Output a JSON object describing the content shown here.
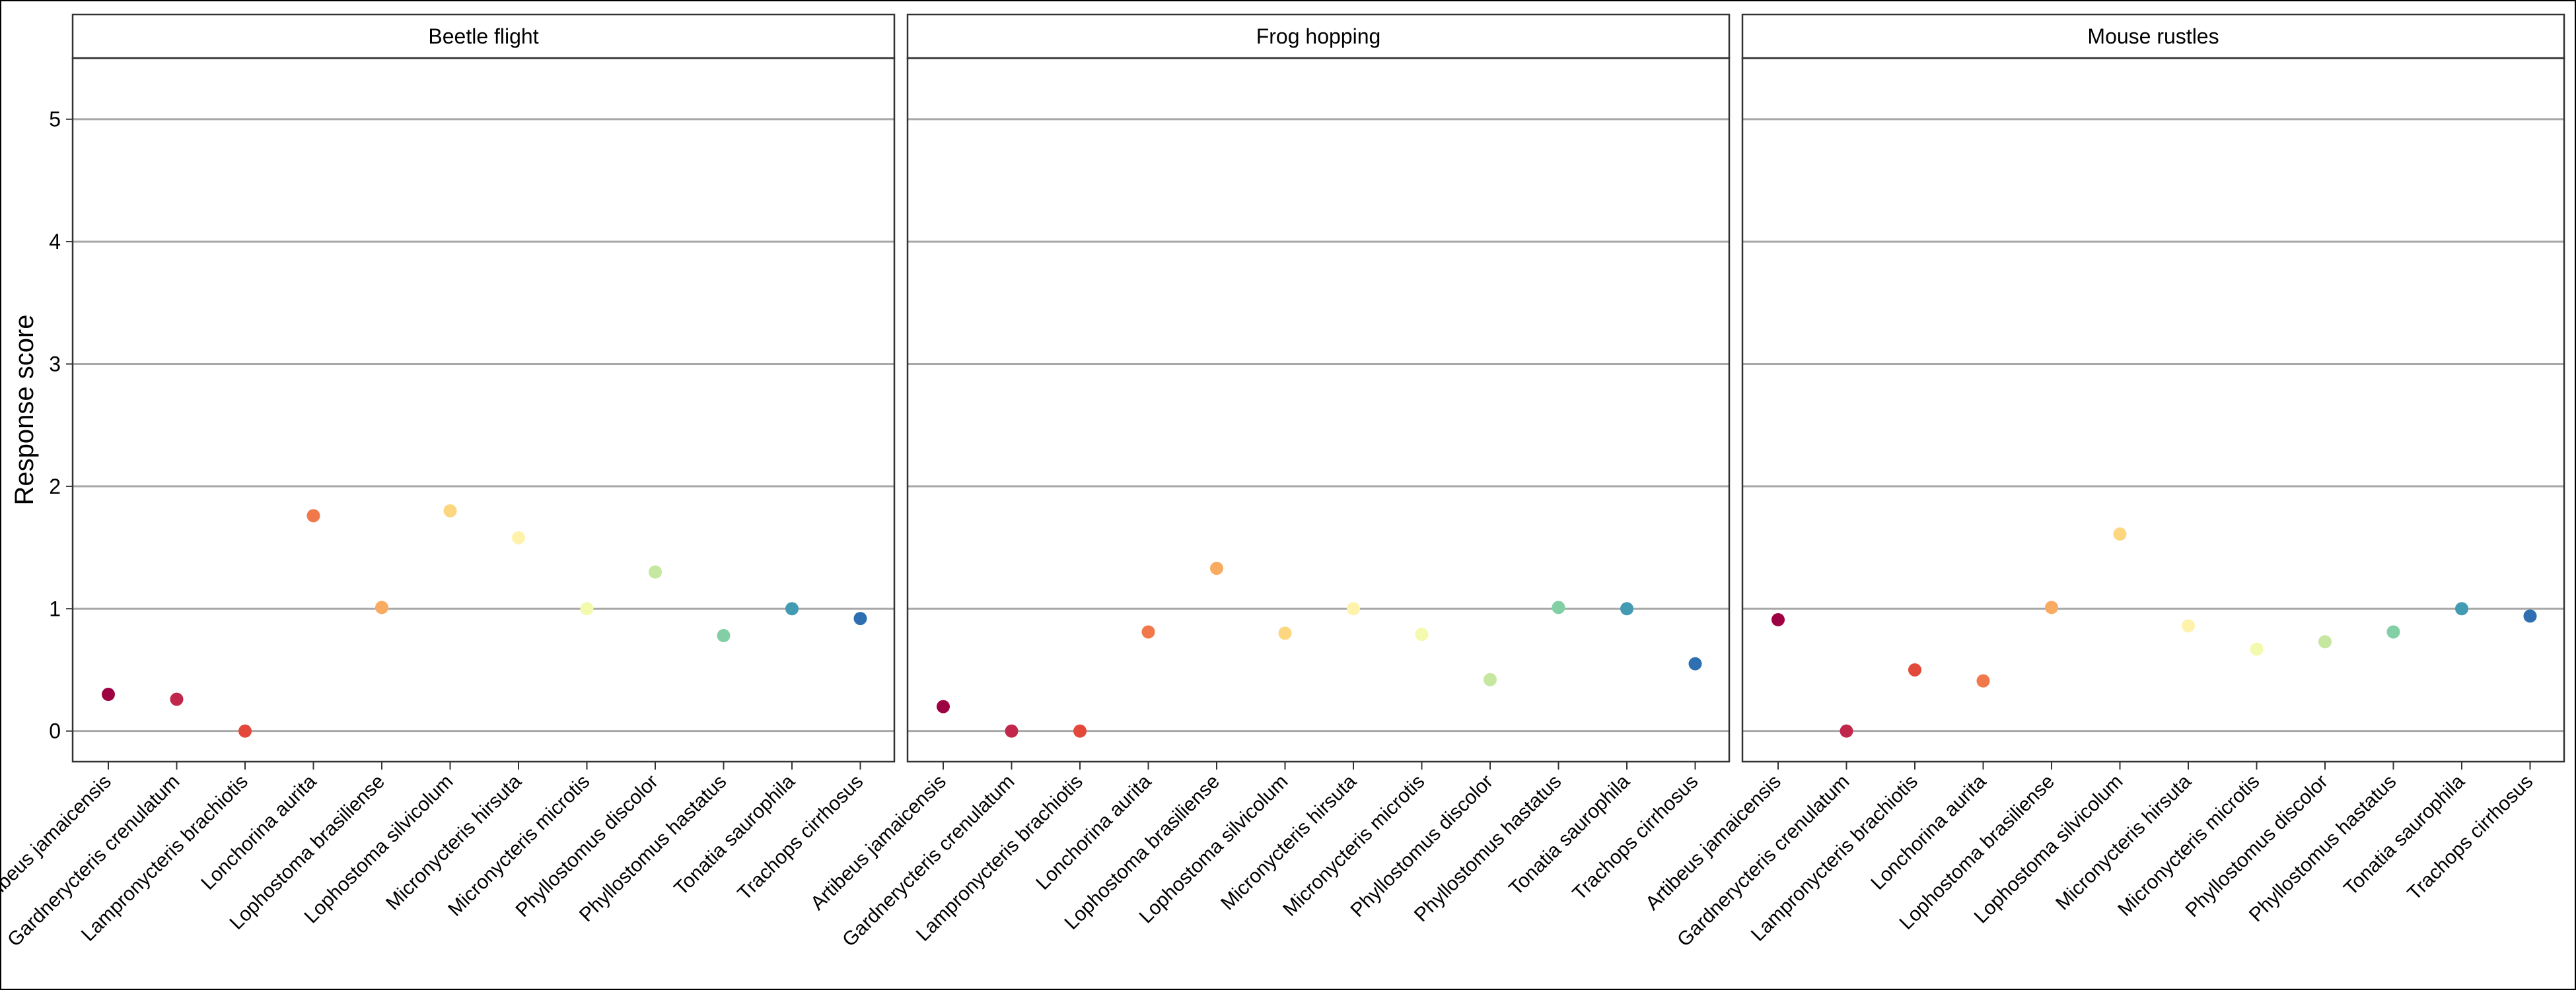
{
  "chart_data": {
    "type": "scatter",
    "ylabel": "Response score",
    "xlabel": "",
    "ylim": [
      -0.25,
      5.5
    ],
    "yticks": [
      0,
      1,
      2,
      3,
      4,
      5
    ],
    "grid": "horizontal",
    "categories": [
      "Artibeus jamaicensis",
      "Gardnerycteris crenulatum",
      "Lampronycteris brachiotis",
      "Lonchorina aurita",
      "Lophostoma brasiliense",
      "Lophostoma silvicolum",
      "Micronycteris hirsuta",
      "Micronycteris microtis",
      "Phyllostomus discolor",
      "Phyllostomus hastatus",
      "Tonatia saurophila",
      "Trachops cirrhosus"
    ],
    "colors": [
      "#9e0142",
      "#c1274a",
      "#e2493a",
      "#f0784a",
      "#f9ac61",
      "#fdd680",
      "#fff3ac",
      "#f3faad",
      "#c5e7a0",
      "#83cfa5",
      "#439ab3",
      "#2d6fb0"
    ],
    "panels": [
      {
        "title": "Beetle flight",
        "values": [
          0.3,
          0.26,
          0.0,
          1.76,
          1.01,
          1.8,
          1.58,
          1.0,
          1.3,
          0.78,
          1.0,
          0.92
        ]
      },
      {
        "title": "Frog hopping",
        "values": [
          0.2,
          0.0,
          0.0,
          0.81,
          1.33,
          0.8,
          1.0,
          0.79,
          0.42,
          1.01,
          1.0,
          0.55
        ]
      },
      {
        "title": "Mouse rustles",
        "values": [
          0.91,
          0.0,
          0.5,
          0.41,
          1.01,
          1.61,
          0.86,
          0.67,
          0.73,
          0.81,
          1.0,
          0.94
        ]
      }
    ]
  }
}
